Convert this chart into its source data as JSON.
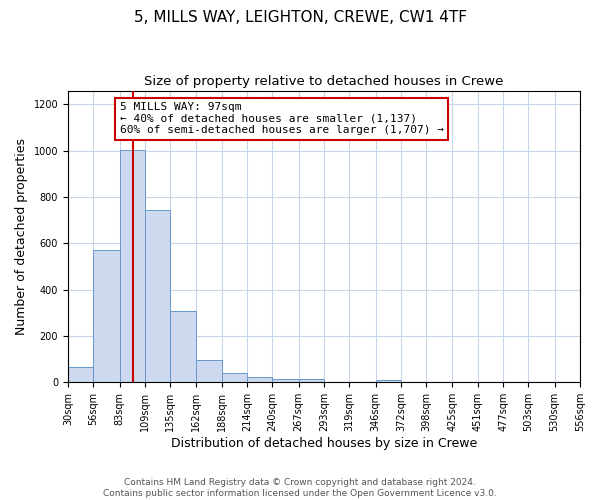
{
  "title": "5, MILLS WAY, LEIGHTON, CREWE, CW1 4TF",
  "subtitle": "Size of property relative to detached houses in Crewe",
  "xlabel": "Distribution of detached houses by size in Crewe",
  "ylabel": "Number of detached properties",
  "bin_edges": [
    30,
    56,
    83,
    109,
    135,
    162,
    188,
    214,
    240,
    267,
    293,
    319,
    346,
    372,
    398,
    425,
    451,
    477,
    503,
    530,
    556
  ],
  "bar_heights": [
    65,
    570,
    1005,
    745,
    310,
    95,
    40,
    22,
    15,
    13,
    0,
    0,
    10,
    0,
    0,
    0,
    0,
    0,
    0,
    0
  ],
  "bar_color": "#cdd9ee",
  "bar_edge_color": "#6699cc",
  "property_line_x": 97,
  "property_line_color": "#cc0000",
  "ylim": [
    0,
    1260
  ],
  "annotation_line1": "5 MILLS WAY: 97sqm",
  "annotation_line2": "← 40% of detached houses are smaller (1,137)",
  "annotation_line3": "60% of semi-detached houses are larger (1,707) →",
  "annotation_box_color": "#cc0000",
  "footer_line1": "Contains HM Land Registry data © Crown copyright and database right 2024.",
  "footer_line2": "Contains public sector information licensed under the Open Government Licence v3.0.",
  "tick_labels": [
    "30sqm",
    "56sqm",
    "83sqm",
    "109sqm",
    "135sqm",
    "162sqm",
    "188sqm",
    "214sqm",
    "240sqm",
    "267sqm",
    "293sqm",
    "319sqm",
    "346sqm",
    "372sqm",
    "398sqm",
    "425sqm",
    "451sqm",
    "477sqm",
    "503sqm",
    "530sqm",
    "556sqm"
  ],
  "background_color": "#ffffff",
  "grid_color": "#c8d4e8",
  "title_fontsize": 11,
  "subtitle_fontsize": 9.5,
  "axis_label_fontsize": 9,
  "tick_fontsize": 7,
  "annotation_fontsize": 8,
  "footer_fontsize": 6.5
}
